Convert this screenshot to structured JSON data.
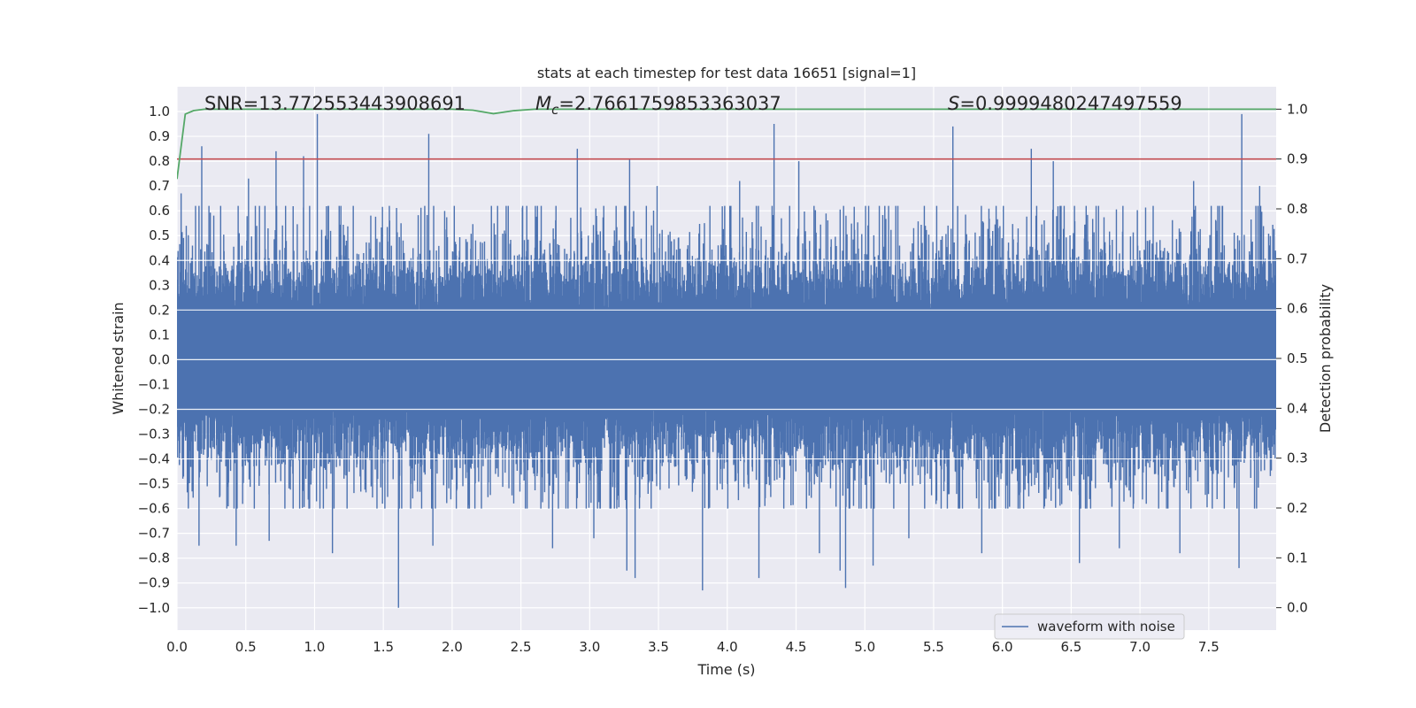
{
  "chart_data": {
    "type": "line",
    "title": "stats at each timestep for test data 16651 [signal=1]",
    "xlabel": "Time (s)",
    "ylabel": "Whitened strain",
    "y2label": "Detection probability",
    "xlim": [
      0.0,
      7.99
    ],
    "ylim": [
      -1.09,
      1.1
    ],
    "y2lim": [
      -0.045,
      1.045
    ],
    "x_ticks": [
      0.0,
      0.5,
      1.0,
      1.5,
      2.0,
      2.5,
      3.0,
      3.5,
      4.0,
      4.5,
      5.0,
      5.5,
      6.0,
      6.5,
      7.0,
      7.5
    ],
    "x_tick_labels": [
      "0.0",
      "0.5",
      "1.0",
      "1.5",
      "2.0",
      "2.5",
      "3.0",
      "3.5",
      "4.0",
      "4.5",
      "5.0",
      "5.5",
      "6.0",
      "6.5",
      "7.0",
      "7.5"
    ],
    "y_ticks": [
      -1.0,
      -0.9,
      -0.8,
      -0.7,
      -0.6,
      -0.5,
      -0.4,
      -0.3,
      -0.2,
      -0.1,
      0.0,
      0.1,
      0.2,
      0.3,
      0.4,
      0.5,
      0.6,
      0.7,
      0.8,
      0.9,
      1.0
    ],
    "y_tick_labels": [
      "−1.0",
      "−0.9",
      "−0.8",
      "−0.7",
      "−0.6",
      "−0.5",
      "−0.4",
      "−0.3",
      "−0.2",
      "−0.1",
      "0.0",
      "0.1",
      "0.2",
      "0.3",
      "0.4",
      "0.5",
      "0.6",
      "0.7",
      "0.8",
      "0.9",
      "1.0"
    ],
    "y2_ticks": [
      0.0,
      0.1,
      0.2,
      0.3,
      0.4,
      0.5,
      0.6,
      0.7,
      0.8,
      0.9,
      1.0
    ],
    "y2_tick_labels": [
      "0.0",
      "0.1",
      "0.2",
      "0.3",
      "0.4",
      "0.5",
      "0.6",
      "0.7",
      "0.8",
      "0.9",
      "1.0"
    ],
    "annotations": {
      "snr": "SNR=13.772553443908691",
      "mc_symbol": "M",
      "mc_subscript": "c",
      "mc_value": "=2.7661759853363037",
      "s_symbol": "S",
      "s_value": "=0.9999480247497559"
    },
    "threshold": {
      "axis": "right",
      "value": 0.9,
      "color": "#c44e52"
    },
    "legend": {
      "label": "waveform with noise",
      "location": "lower-right"
    },
    "series": [
      {
        "name": "waveform with noise",
        "axis": "left",
        "color": "#4c72b0",
        "kind": "noise-envelope",
        "sample_rate_hz": 2048,
        "duration_s": 7.99,
        "dense_envelope": [
          -0.19,
          0.19
        ],
        "typical_peak_range": [
          -0.6,
          0.62
        ],
        "peaks": [
          {
            "x": 0.03,
            "y": 0.67
          },
          {
            "x": 0.18,
            "y": 0.86
          },
          {
            "x": 0.16,
            "y": -0.75
          },
          {
            "x": 0.43,
            "y": -0.75
          },
          {
            "x": 0.52,
            "y": 0.73
          },
          {
            "x": 0.67,
            "y": -0.73
          },
          {
            "x": 0.72,
            "y": 0.84
          },
          {
            "x": 0.92,
            "y": 0.82
          },
          {
            "x": 1.02,
            "y": 0.99
          },
          {
            "x": 1.13,
            "y": -0.78
          },
          {
            "x": 1.61,
            "y": -1.0
          },
          {
            "x": 1.83,
            "y": 0.91
          },
          {
            "x": 1.86,
            "y": -0.75
          },
          {
            "x": 2.73,
            "y": -0.76
          },
          {
            "x": 2.91,
            "y": 0.85
          },
          {
            "x": 3.03,
            "y": -0.72
          },
          {
            "x": 3.27,
            "y": -0.85
          },
          {
            "x": 3.29,
            "y": 0.81
          },
          {
            "x": 3.33,
            "y": -0.88
          },
          {
            "x": 3.49,
            "y": 0.7
          },
          {
            "x": 3.82,
            "y": -0.93
          },
          {
            "x": 4.09,
            "y": 0.72
          },
          {
            "x": 4.23,
            "y": -0.88
          },
          {
            "x": 4.34,
            "y": 0.95
          },
          {
            "x": 4.52,
            "y": 0.8
          },
          {
            "x": 4.67,
            "y": -0.78
          },
          {
            "x": 4.82,
            "y": -0.85
          },
          {
            "x": 4.86,
            "y": -0.92
          },
          {
            "x": 5.06,
            "y": -0.83
          },
          {
            "x": 5.32,
            "y": -0.72
          },
          {
            "x": 5.64,
            "y": 0.94
          },
          {
            "x": 5.85,
            "y": -0.78
          },
          {
            "x": 6.21,
            "y": 0.85
          },
          {
            "x": 6.37,
            "y": 0.8
          },
          {
            "x": 6.56,
            "y": -0.82
          },
          {
            "x": 6.85,
            "y": -0.76
          },
          {
            "x": 7.29,
            "y": -0.78
          },
          {
            "x": 7.39,
            "y": 0.72
          },
          {
            "x": 7.74,
            "y": 0.99
          },
          {
            "x": 7.72,
            "y": -0.84
          },
          {
            "x": 7.87,
            "y": 0.7
          }
        ]
      },
      {
        "name": "detection probability",
        "axis": "right",
        "color": "#55a868",
        "x": [
          0.0,
          0.06,
          0.12,
          0.2,
          0.4,
          1.0,
          2.0,
          2.15,
          2.3,
          2.45,
          2.6,
          3.0,
          5.0,
          7.99
        ],
        "y": [
          0.86,
          0.99,
          0.997,
          1.0,
          1.0,
          1.0,
          1.0,
          0.998,
          0.991,
          0.997,
          1.0,
          1.0,
          1.0,
          1.0
        ]
      }
    ]
  }
}
